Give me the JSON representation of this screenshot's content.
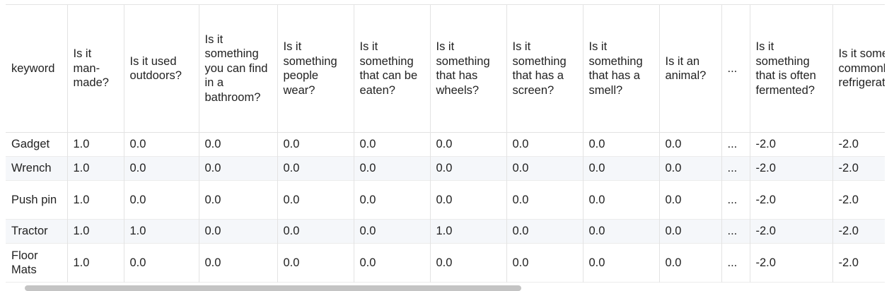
{
  "table": {
    "headers": [
      "keyword",
      "Is it man-made?",
      "Is it used outdoors?",
      "Is it something you can find in a bathroom?",
      "Is it something people wear?",
      "Is it something that can be eaten?",
      "Is it something that has wheels?",
      "Is it something that has a screen?",
      "Is it something that has a smell?",
      "Is it an animal?",
      "...",
      "Is it something that is often fermented?",
      "Is it something that is commonly found in refrigerator?"
    ],
    "rows": [
      [
        "Gadget",
        "1.0",
        "0.0",
        "0.0",
        "0.0",
        "0.0",
        "0.0",
        "0.0",
        "0.0",
        "0.0",
        "...",
        "-2.0",
        "-2.0"
      ],
      [
        "Wrench",
        "1.0",
        "0.0",
        "0.0",
        "0.0",
        "0.0",
        "0.0",
        "0.0",
        "0.0",
        "0.0",
        "...",
        "-2.0",
        "-2.0"
      ],
      [
        "Push pin",
        "1.0",
        "0.0",
        "0.0",
        "0.0",
        "0.0",
        "0.0",
        "0.0",
        "0.0",
        "0.0",
        "...",
        "-2.0",
        "-2.0"
      ],
      [
        "Tractor",
        "1.0",
        "1.0",
        "0.0",
        "0.0",
        "0.0",
        "1.0",
        "0.0",
        "0.0",
        "0.0",
        "...",
        "-2.0",
        "-2.0"
      ],
      [
        "Floor Mats",
        "1.0",
        "0.0",
        "0.0",
        "0.0",
        "0.0",
        "0.0",
        "0.0",
        "0.0",
        "0.0",
        "...",
        "-2.0",
        "-2.0"
      ]
    ]
  }
}
